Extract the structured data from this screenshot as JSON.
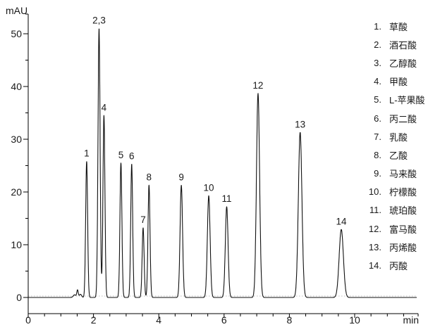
{
  "chart_data": {
    "type": "line",
    "subtype": "hplc-chromatogram",
    "title": "",
    "xlabel": "min",
    "ylabel": "mAU",
    "xlim": [
      0,
      11.9
    ],
    "ylim": [
      0,
      53
    ],
    "x_major_ticks": [
      0,
      2,
      4,
      6,
      8,
      10
    ],
    "x_minor_tick_interval": 0.5,
    "y_major_ticks": [
      0,
      10,
      20,
      30,
      40,
      50
    ],
    "y_minor_tick_interval": 5,
    "grid": "dotted-zero-baseline-only",
    "legend_position": "right",
    "trace_color": "#111111",
    "baseline_mau": 0,
    "peaks": [
      {
        "label": "1",
        "compound": "草酸",
        "rt_min": 1.79,
        "height_mau": 25.8,
        "sigma_min": 0.03
      },
      {
        "label": "2,3",
        "compound": "酒石酸 + 乙醇酸",
        "rt_min": 2.17,
        "height_mau": 51.0,
        "sigma_min": 0.032
      },
      {
        "label": "4",
        "compound": "甲酸",
        "rt_min": 2.32,
        "height_mau": 34.5,
        "sigma_min": 0.03
      },
      {
        "label": "5",
        "compound": "L-苹果酸",
        "rt_min": 2.84,
        "height_mau": 25.5,
        "sigma_min": 0.03
      },
      {
        "label": "6",
        "compound": "丙二酸",
        "rt_min": 3.17,
        "height_mau": 25.3,
        "sigma_min": 0.03
      },
      {
        "label": "7",
        "compound": "乳酸",
        "rt_min": 3.52,
        "height_mau": 13.2,
        "sigma_min": 0.03
      },
      {
        "label": "8",
        "compound": "乙酸",
        "rt_min": 3.7,
        "height_mau": 21.3,
        "sigma_min": 0.031
      },
      {
        "label": "9",
        "compound": "马来酸",
        "rt_min": 4.69,
        "height_mau": 21.3,
        "sigma_min": 0.038
      },
      {
        "label": "10",
        "compound": "柠檬酸",
        "rt_min": 5.53,
        "height_mau": 19.3,
        "sigma_min": 0.042
      },
      {
        "label": "11",
        "compound": "琥珀酸",
        "rt_min": 6.08,
        "height_mau": 17.2,
        "sigma_min": 0.042
      },
      {
        "label": "12",
        "compound": "富马酸",
        "rt_min": 7.04,
        "height_mau": 38.7,
        "sigma_min": 0.048
      },
      {
        "label": "13",
        "compound": "丙烯酸",
        "rt_min": 8.33,
        "height_mau": 31.3,
        "sigma_min": 0.055
      },
      {
        "label": "14",
        "compound": "丙酸",
        "rt_min": 9.59,
        "height_mau": 12.9,
        "sigma_min": 0.065
      }
    ],
    "baseline_disturbances": [
      {
        "rt_min": 1.42,
        "height_mau": 0.5,
        "sigma_min": 0.04
      },
      {
        "rt_min": 1.51,
        "height_mau": 1.4,
        "sigma_min": 0.022
      },
      {
        "rt_min": 1.6,
        "height_mau": 0.6,
        "sigma_min": 0.035
      }
    ]
  },
  "legend": {
    "items": [
      {
        "number": "1.",
        "name": "草酸"
      },
      {
        "number": "2.",
        "name": "酒石酸"
      },
      {
        "number": "3.",
        "name": "乙醇酸"
      },
      {
        "number": "4.",
        "name": "甲酸"
      },
      {
        "number": "5.",
        "name": "L-苹果酸"
      },
      {
        "number": "6.",
        "name": "丙二酸"
      },
      {
        "number": "7.",
        "name": "乳酸"
      },
      {
        "number": "8.",
        "name": "乙酸"
      },
      {
        "number": "9.",
        "name": "马来酸"
      },
      {
        "number": "10.",
        "name": "柠檬酸"
      },
      {
        "number": "11.",
        "name": "琥珀酸"
      },
      {
        "number": "12.",
        "name": "富马酸"
      },
      {
        "number": "13.",
        "name": "丙烯酸"
      },
      {
        "number": "14.",
        "name": "丙酸"
      }
    ]
  }
}
